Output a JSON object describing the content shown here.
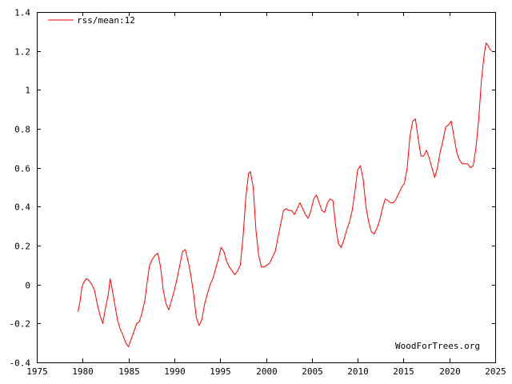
{
  "chart_data": {
    "type": "line",
    "title": "",
    "xlabel": "",
    "ylabel": "",
    "xlim": [
      1975,
      2025
    ],
    "ylim": [
      -0.4,
      1.4
    ],
    "x_ticks": [
      1975,
      1980,
      1985,
      1990,
      1995,
      2000,
      2005,
      2010,
      2015,
      2020,
      2025
    ],
    "y_ticks": [
      -0.4,
      -0.2,
      0,
      0.2,
      0.4,
      0.6,
      0.8,
      1.0,
      1.2,
      1.4
    ],
    "x_tick_labels": [
      "1975",
      "1980",
      "1985",
      "1990",
      "1995",
      "2000",
      "2005",
      "2010",
      "2015",
      "2020",
      "2025"
    ],
    "y_tick_labels": [
      "-0.4",
      "-0.2",
      "0",
      "0.2",
      "0.4",
      "0.6",
      "0.8",
      "1",
      "1.2",
      "1.4"
    ],
    "grid": false,
    "legend_position": "top-left",
    "watermark": "WoodForTrees.org",
    "series": [
      {
        "name": "rss/mean:12",
        "color": "#ff0000",
        "points": [
          [
            1979.5,
            -0.14
          ],
          [
            1979.7,
            -0.09
          ],
          [
            1979.9,
            -0.02
          ],
          [
            1980.1,
            0.01
          ],
          [
            1980.4,
            0.03
          ],
          [
            1980.7,
            0.02
          ],
          [
            1981.0,
            0.0
          ],
          [
            1981.3,
            -0.03
          ],
          [
            1981.6,
            -0.1
          ],
          [
            1981.9,
            -0.16
          ],
          [
            1982.2,
            -0.2
          ],
          [
            1982.5,
            -0.12
          ],
          [
            1982.8,
            -0.05
          ],
          [
            1983.0,
            0.03
          ],
          [
            1983.2,
            -0.02
          ],
          [
            1983.5,
            -0.1
          ],
          [
            1983.8,
            -0.18
          ],
          [
            1984.1,
            -0.23
          ],
          [
            1984.4,
            -0.26
          ],
          [
            1984.7,
            -0.3
          ],
          [
            1985.0,
            -0.32
          ],
          [
            1985.3,
            -0.28
          ],
          [
            1985.6,
            -0.24
          ],
          [
            1985.9,
            -0.2
          ],
          [
            1986.2,
            -0.19
          ],
          [
            1986.5,
            -0.14
          ],
          [
            1986.8,
            -0.08
          ],
          [
            1987.0,
            0.0
          ],
          [
            1987.3,
            0.1
          ],
          [
            1987.6,
            0.13
          ],
          [
            1987.9,
            0.15
          ],
          [
            1988.2,
            0.16
          ],
          [
            1988.5,
            0.09
          ],
          [
            1988.8,
            -0.03
          ],
          [
            1989.1,
            -0.1
          ],
          [
            1989.4,
            -0.13
          ],
          [
            1989.7,
            -0.08
          ],
          [
            1990.0,
            -0.03
          ],
          [
            1990.3,
            0.03
          ],
          [
            1990.6,
            0.1
          ],
          [
            1990.9,
            0.17
          ],
          [
            1991.2,
            0.18
          ],
          [
            1991.5,
            0.12
          ],
          [
            1991.8,
            0.05
          ],
          [
            1992.1,
            -0.05
          ],
          [
            1992.4,
            -0.17
          ],
          [
            1992.7,
            -0.21
          ],
          [
            1993.0,
            -0.18
          ],
          [
            1993.3,
            -0.1
          ],
          [
            1993.6,
            -0.05
          ],
          [
            1993.9,
            0.0
          ],
          [
            1994.2,
            0.03
          ],
          [
            1994.5,
            0.08
          ],
          [
            1994.8,
            0.13
          ],
          [
            1995.1,
            0.19
          ],
          [
            1995.4,
            0.17
          ],
          [
            1995.7,
            0.12
          ],
          [
            1996.0,
            0.09
          ],
          [
            1996.3,
            0.07
          ],
          [
            1996.6,
            0.05
          ],
          [
            1996.9,
            0.07
          ],
          [
            1997.2,
            0.1
          ],
          [
            1997.5,
            0.25
          ],
          [
            1997.8,
            0.45
          ],
          [
            1998.1,
            0.57
          ],
          [
            1998.3,
            0.58
          ],
          [
            1998.6,
            0.5
          ],
          [
            1998.9,
            0.28
          ],
          [
            1999.2,
            0.15
          ],
          [
            1999.5,
            0.09
          ],
          [
            1999.8,
            0.09
          ],
          [
            2000.1,
            0.1
          ],
          [
            2000.4,
            0.11
          ],
          [
            2000.7,
            0.14
          ],
          [
            2001.0,
            0.17
          ],
          [
            2001.3,
            0.24
          ],
          [
            2001.6,
            0.31
          ],
          [
            2001.9,
            0.38
          ],
          [
            2002.2,
            0.39
          ],
          [
            2002.5,
            0.38
          ],
          [
            2002.8,
            0.38
          ],
          [
            2003.1,
            0.36
          ],
          [
            2003.4,
            0.39
          ],
          [
            2003.7,
            0.42
          ],
          [
            2004.0,
            0.39
          ],
          [
            2004.3,
            0.36
          ],
          [
            2004.6,
            0.34
          ],
          [
            2004.9,
            0.38
          ],
          [
            2005.2,
            0.44
          ],
          [
            2005.5,
            0.46
          ],
          [
            2005.8,
            0.42
          ],
          [
            2006.1,
            0.38
          ],
          [
            2006.4,
            0.37
          ],
          [
            2006.7,
            0.42
          ],
          [
            2007.0,
            0.44
          ],
          [
            2007.3,
            0.43
          ],
          [
            2007.6,
            0.3
          ],
          [
            2007.9,
            0.21
          ],
          [
            2008.2,
            0.19
          ],
          [
            2008.5,
            0.23
          ],
          [
            2008.8,
            0.28
          ],
          [
            2009.1,
            0.32
          ],
          [
            2009.4,
            0.38
          ],
          [
            2009.7,
            0.48
          ],
          [
            2010.0,
            0.59
          ],
          [
            2010.3,
            0.61
          ],
          [
            2010.6,
            0.54
          ],
          [
            2010.9,
            0.4
          ],
          [
            2011.2,
            0.32
          ],
          [
            2011.5,
            0.27
          ],
          [
            2011.8,
            0.26
          ],
          [
            2012.1,
            0.29
          ],
          [
            2012.4,
            0.33
          ],
          [
            2012.7,
            0.39
          ],
          [
            2013.0,
            0.44
          ],
          [
            2013.3,
            0.43
          ],
          [
            2013.6,
            0.42
          ],
          [
            2013.9,
            0.42
          ],
          [
            2014.2,
            0.44
          ],
          [
            2014.5,
            0.47
          ],
          [
            2014.8,
            0.5
          ],
          [
            2015.1,
            0.52
          ],
          [
            2015.4,
            0.6
          ],
          [
            2015.7,
            0.76
          ],
          [
            2016.0,
            0.84
          ],
          [
            2016.3,
            0.85
          ],
          [
            2016.6,
            0.75
          ],
          [
            2016.9,
            0.66
          ],
          [
            2017.2,
            0.66
          ],
          [
            2017.5,
            0.69
          ],
          [
            2017.8,
            0.65
          ],
          [
            2018.1,
            0.6
          ],
          [
            2018.4,
            0.55
          ],
          [
            2018.7,
            0.6
          ],
          [
            2019.0,
            0.68
          ],
          [
            2019.3,
            0.74
          ],
          [
            2019.6,
            0.81
          ],
          [
            2019.9,
            0.82
          ],
          [
            2020.2,
            0.84
          ],
          [
            2020.5,
            0.76
          ],
          [
            2020.8,
            0.68
          ],
          [
            2021.1,
            0.64
          ],
          [
            2021.4,
            0.62
          ],
          [
            2021.7,
            0.62
          ],
          [
            2022.0,
            0.62
          ],
          [
            2022.3,
            0.6
          ],
          [
            2022.6,
            0.61
          ],
          [
            2022.9,
            0.7
          ],
          [
            2023.2,
            0.85
          ],
          [
            2023.5,
            1.05
          ],
          [
            2023.8,
            1.18
          ],
          [
            2024.0,
            1.24
          ],
          [
            2024.2,
            1.23
          ],
          [
            2024.4,
            1.21
          ],
          [
            2024.6,
            1.2
          ]
        ]
      }
    ]
  }
}
